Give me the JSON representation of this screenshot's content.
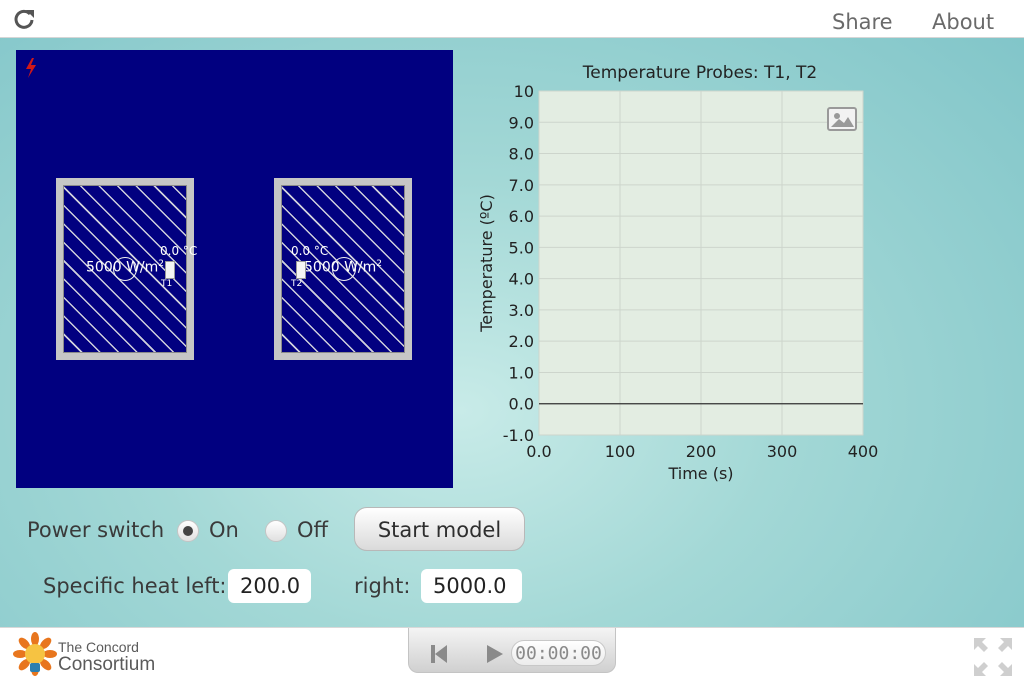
{
  "topbar": {
    "share_label": "Share",
    "about_label": "About"
  },
  "simulation": {
    "left_box": {
      "heat_flux_value": "5000 W/m",
      "heat_flux_exp": "2",
      "probe_temp": "0.0 °C",
      "probe_name": "T1"
    },
    "right_box": {
      "heat_flux_value": "5000 W/m",
      "heat_flux_exp": "2",
      "probe_temp": "0.0 °C",
      "probe_name": "T2"
    }
  },
  "controls": {
    "power_switch_label": "Power switch",
    "on_label": "On",
    "off_label": "Off",
    "power_on": true,
    "start_button_label": "Start model",
    "specific_heat_left_label": "Specific heat left:",
    "specific_heat_left_value": "200.0",
    "right_label": "right:",
    "specific_heat_right_value": "5000.0"
  },
  "player": {
    "time_display": "00:00:00"
  },
  "logo": {
    "line1": "The Concord",
    "line2": "Consortium"
  },
  "colors": {
    "sim_background": "#010080",
    "plot_background": "#e3ede2",
    "page_accent": "#8fd0d0"
  },
  "icons": {
    "reload": "reload-icon",
    "bolt": "lightning-bolt-icon",
    "image": "image-snapshot-icon",
    "rewind": "skip-back-icon",
    "play": "play-icon",
    "fullscreen": "fullscreen-icon"
  },
  "chart_data": {
    "type": "line",
    "title": "Temperature Probes: T1, T2",
    "xlabel": "Time (s)",
    "ylabel": "Temperature (ºC)",
    "xlim": [
      0,
      400
    ],
    "ylim": [
      -1,
      10
    ],
    "x_ticks": [
      "0.0",
      "100",
      "200",
      "300",
      "400"
    ],
    "y_ticks": [
      "-1.0",
      "0.0",
      "1.0",
      "2.0",
      "3.0",
      "4.0",
      "5.0",
      "6.0",
      "7.0",
      "8.0",
      "9.0",
      "10"
    ],
    "x_tick_values": [
      0,
      100,
      200,
      300,
      400
    ],
    "y_tick_values": [
      -1,
      0,
      1,
      2,
      3,
      4,
      5,
      6,
      7,
      8,
      9,
      10
    ],
    "grid": true,
    "series": [
      {
        "x": [
          0,
          400
        ],
        "y": [
          0,
          0
        ]
      }
    ]
  }
}
